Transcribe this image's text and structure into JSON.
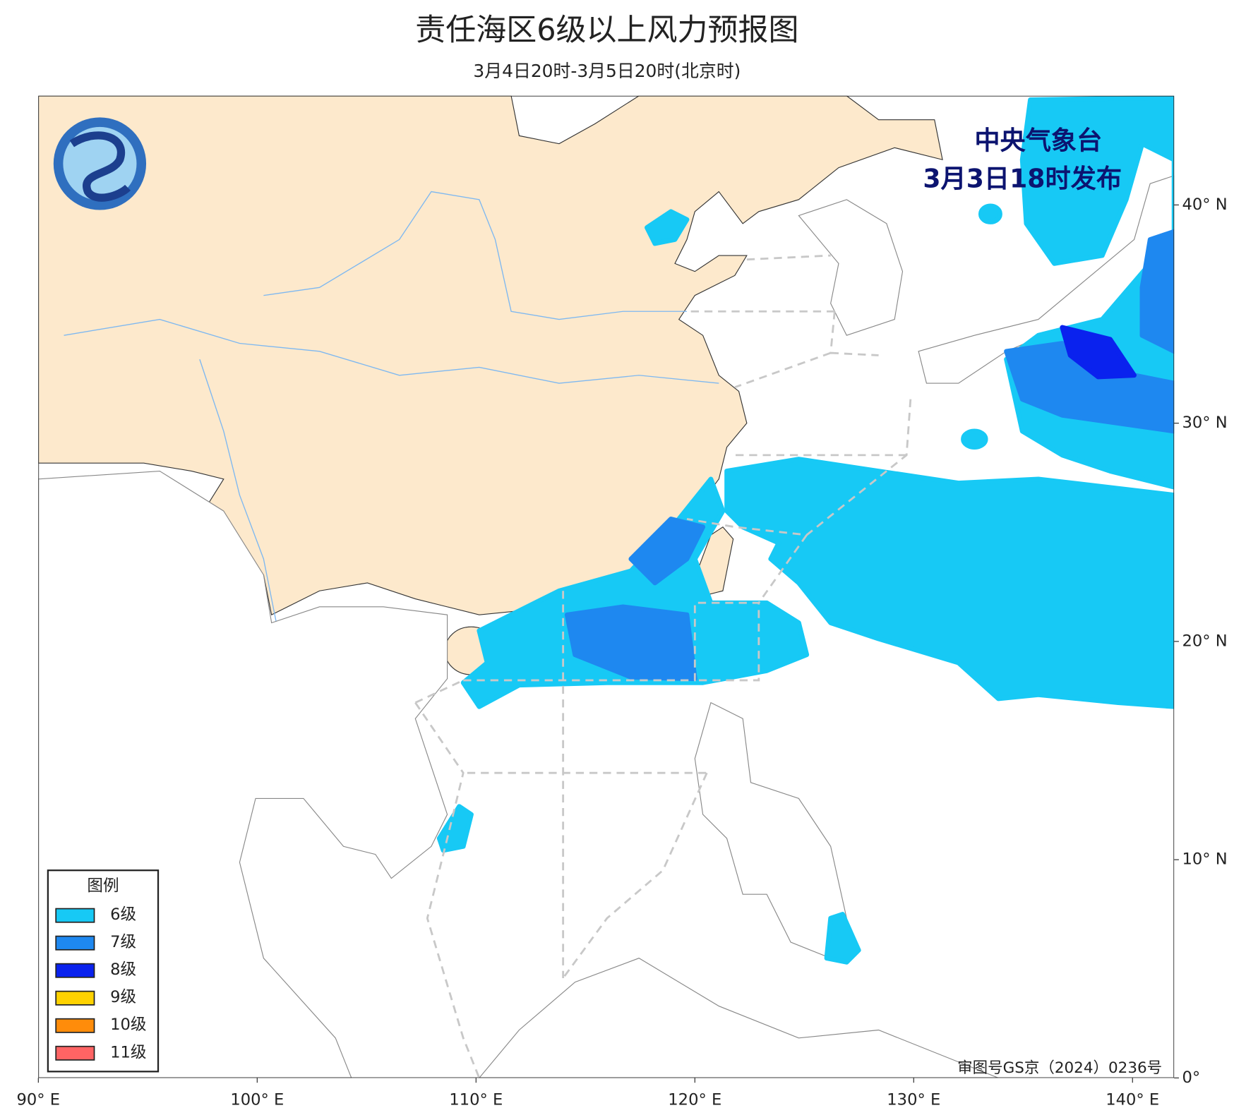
{
  "header": {
    "title": "责任海区6级以上风力预报图",
    "subtitle": "3月4日20时-3月5日20时(北京时)"
  },
  "issuer": {
    "line1": "中央气象台",
    "line2": "3月3日18时发布"
  },
  "map": {
    "xlim": [
      90,
      141.9
    ],
    "ylim": [
      0,
      45
    ],
    "xticks": [
      {
        "value": 90,
        "label": "90° E"
      },
      {
        "value": 100,
        "label": "100° E"
      },
      {
        "value": 110,
        "label": "110° E"
      },
      {
        "value": 120,
        "label": "120° E"
      },
      {
        "value": 130,
        "label": "130° E"
      },
      {
        "value": 140,
        "label": "140° E"
      }
    ],
    "yticks": [
      {
        "value": 0,
        "label": "0°"
      },
      {
        "value": 10,
        "label": "10° N"
      },
      {
        "value": 20,
        "label": "20° N"
      },
      {
        "value": 30,
        "label": "30° N"
      },
      {
        "value": 40,
        "label": "40° N"
      }
    ]
  },
  "legend": {
    "title": "图例",
    "items": [
      {
        "name": "6级",
        "color": "#17c9f5"
      },
      {
        "name": "7级",
        "color": "#1e88f0"
      },
      {
        "name": "8级",
        "color": "#0a22ee"
      },
      {
        "name": "9级",
        "color": "#ffd200"
      },
      {
        "name": "10级",
        "color": "#ff8c0a"
      },
      {
        "name": "11级",
        "color": "#ff6464"
      }
    ]
  },
  "approval": "审图号GS京（2024）0236号"
}
